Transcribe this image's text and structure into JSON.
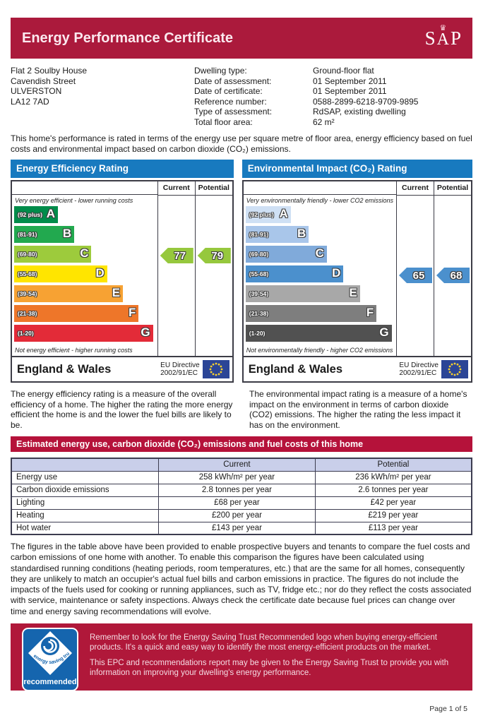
{
  "header": {
    "title": "Energy Performance Certificate",
    "sap_letters": [
      "S",
      "A",
      "P"
    ]
  },
  "icons": {
    "crown": "♛"
  },
  "colors": {
    "header_crimson": "#ab1a3c",
    "section_crimson": "#b5123a",
    "chart_header_blue": "#187abf",
    "table_header_blue": "#c9cfea",
    "footer_crimson": "#b0183a"
  },
  "property": {
    "address_lines": [
      "Flat 2 Soulby House",
      "Cavendish Street",
      "ULVERSTON",
      "LA12 7AD"
    ],
    "details": [
      {
        "label": "Dwelling type:",
        "value": "Ground-floor flat"
      },
      {
        "label": "Date of assessment:",
        "value": "01 September 2011"
      },
      {
        "label": "Date of certificate:",
        "value": "01 September 2011"
      },
      {
        "label": "Reference number:",
        "value": "0588-2899-6218-9709-9895"
      },
      {
        "label": "Type of assessment:",
        "value": "RdSAP, existing dwelling"
      },
      {
        "label": "Total floor area:",
        "value": "62 m²"
      }
    ]
  },
  "intro_text": "This home's performance is rated in terms of the energy use per square metre of floor area, energy efficiency based on fuel costs and environmental impact based on carbon dioxide (CO₂) emissions.",
  "chart_data": {
    "type": "bar",
    "subtype": "epc-rating-scales",
    "charts": [
      {
        "title": "Energy Efficiency Rating",
        "top_note": "Very energy efficient - lower running costs",
        "bottom_note": "Not energy efficient - higher running costs",
        "current_label": "Current",
        "potential_label": "Potential",
        "current": 77,
        "potential": 79,
        "current_band": "C",
        "potential_band": "C",
        "arrow_color": "#96c83d",
        "bands": [
          {
            "letter": "A",
            "range": "(92 plus)",
            "color": "#008c4a",
            "width_pct": 30
          },
          {
            "letter": "B",
            "range": "(81-91)",
            "color": "#22a94f",
            "width_pct": 42
          },
          {
            "letter": "C",
            "range": "(69-80)",
            "color": "#9dcb3c",
            "width_pct": 54
          },
          {
            "letter": "D",
            "range": "(55-68)",
            "color": "#ffe500",
            "width_pct": 65
          },
          {
            "letter": "E",
            "range": "(39-54)",
            "color": "#f7a233",
            "width_pct": 76
          },
          {
            "letter": "F",
            "range": "(21-38)",
            "color": "#ee7629",
            "width_pct": 87
          },
          {
            "letter": "G",
            "range": "(1-20)",
            "color": "#e32b38",
            "width_pct": 97
          }
        ],
        "region": "England & Wales",
        "directive_line1": "EU Directive",
        "directive_line2": "2002/91/EC"
      },
      {
        "title": "Environmental Impact (CO₂) Rating",
        "top_note": "Very environmentally friendly - lower CO2 emissions",
        "bottom_note": "Not environmentally friendly - higher CO2 emissions",
        "current_label": "Current",
        "potential_label": "Potential",
        "current": 65,
        "potential": 68,
        "current_band": "D",
        "potential_band": "D",
        "arrow_color": "#4b90cd",
        "bands": [
          {
            "letter": "A",
            "range": "(92 plus)",
            "color": "#cfe0f4",
            "width_pct": 30
          },
          {
            "letter": "B",
            "range": "(81-91)",
            "color": "#a9c6ea",
            "width_pct": 42
          },
          {
            "letter": "C",
            "range": "(69-80)",
            "color": "#80aada",
            "width_pct": 54
          },
          {
            "letter": "D",
            "range": "(55-68)",
            "color": "#4b90cd",
            "width_pct": 65
          },
          {
            "letter": "E",
            "range": "(39-54)",
            "color": "#a8a8a8",
            "width_pct": 76
          },
          {
            "letter": "F",
            "range": "(21-38)",
            "color": "#7e7e7e",
            "width_pct": 87
          },
          {
            "letter": "G",
            "range": "(1-20)",
            "color": "#515151",
            "width_pct": 97
          }
        ],
        "region": "England & Wales",
        "directive_line1": "EU Directive",
        "directive_line2": "2002/91/EC"
      }
    ]
  },
  "explanations": {
    "efficiency": "The energy efficiency rating is a measure of the overall efficiency of a home. The higher the rating the more energy efficient the home is and the lower the fuel bills are likely to be.",
    "environmental": "The environmental impact rating is a measure of a home's impact on the environment in terms of carbon dioxide (CO2) emissions. The higher the rating the less impact it has on the environment."
  },
  "estimates": {
    "title": "Estimated energy use, carbon dioxide (CO₂) emissions and fuel costs of this home",
    "columns": [
      "",
      "Current",
      "Potential"
    ],
    "rows": [
      {
        "label": "Energy use",
        "current": "258 kWh/m² per year",
        "potential": "236 kWh/m² per year"
      },
      {
        "label": "Carbon dioxide emissions",
        "current": "2.8 tonnes per year",
        "potential": "2.6 tonnes per year"
      },
      {
        "label": "Lighting",
        "current": "£68 per year",
        "potential": "£42 per year"
      },
      {
        "label": "Heating",
        "current": "£200 per year",
        "potential": "£219 per year"
      },
      {
        "label": "Hot water",
        "current": "£143 per year",
        "potential": "£113 per year"
      }
    ]
  },
  "figures_note": "The figures in the table above have been provided to enable prospective buyers and tenants to compare the fuel costs and carbon emissions of one home with another. To enable this comparison the figures have been calculated using standardised running conditions (heating periods, room temperatures, etc.) that are the same for all homes, consequently they are unlikely to match an occupier's actual fuel bills and carbon emissions in practice. The figures do not include the impacts of the fuels used for cooking or running appliances, such as TV, fridge etc.; nor do they reflect the costs associated with service, maintenance or safety inspections. Always check the certificate date because fuel prices can change over time and energy saving recommendations will evolve.",
  "footer_box": {
    "logo": {
      "curved_text": "energy saving trust",
      "label": "recommended"
    },
    "paragraphs": [
      "Remember to look for the Energy Saving Trust Recommended logo when buying energy-efficient products. It's a quick and easy way to identify the most energy-efficient products on the market.",
      "This EPC and recommendations report may be given to the Energy Saving Trust to provide you with information on improving your dwelling's energy performance."
    ]
  },
  "page_number": "Page 1 of 5"
}
